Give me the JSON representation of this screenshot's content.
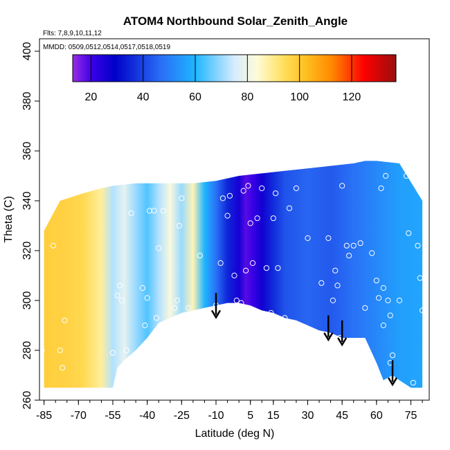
{
  "chart_data": {
    "type": "heatmap",
    "title": "ATOM4 Northbound Solar_Zenith_Angle",
    "annotations": {
      "flights": "Flts: 7,8,9,10,11,12",
      "dates": "MMDD: 0509,0512,0514,0517,0518,0519"
    },
    "xlabel": "Latitude (deg N)",
    "ylabel": "Theta (C)",
    "xlim": [
      -87,
      83
    ],
    "ylim": [
      260,
      405
    ],
    "x_ticks": [
      -85,
      -70,
      -55,
      -40,
      -25,
      -10,
      5,
      15,
      30,
      45,
      60,
      75
    ],
    "x_tick_labels": [
      "-85",
      "-70",
      "-55",
      "-40",
      "-25",
      "-10",
      "5",
      "15",
      "30",
      "45",
      "60",
      "75"
    ],
    "y_ticks": [
      260,
      280,
      300,
      320,
      340,
      360,
      380,
      400
    ],
    "y_tick_labels": [
      "260",
      "280",
      "300",
      "320",
      "340",
      "360",
      "380",
      "400"
    ],
    "colorbar": {
      "min": 13,
      "max": 137,
      "ticks": [
        20,
        40,
        60,
        80,
        100,
        120
      ],
      "tick_labels": [
        "20",
        "40",
        "60",
        "80",
        "100",
        "120"
      ],
      "position": "top-inside"
    },
    "zenith_profile": {
      "latitude": [
        -85,
        -75,
        -68,
        -60,
        -55,
        -50,
        -45,
        -40,
        -35,
        -30,
        -25,
        -20,
        -15,
        -10,
        -5,
        0,
        3,
        6,
        10,
        15,
        20,
        30,
        40,
        50,
        60,
        70,
        80
      ],
      "value": [
        98,
        97,
        95,
        88,
        72,
        78,
        70,
        64,
        72,
        82,
        70,
        86,
        60,
        48,
        36,
        26,
        18,
        20,
        27,
        37,
        43,
        46,
        44,
        48,
        52,
        56,
        57
      ]
    },
    "top_boundary": {
      "latitude": [
        -85,
        -78,
        -68,
        -60,
        -55,
        -45,
        -30,
        -20,
        -10,
        0,
        10,
        20,
        30,
        40,
        50,
        55,
        60,
        70,
        80
      ],
      "theta": [
        328,
        340,
        343,
        345,
        346,
        347,
        347,
        347,
        348,
        350,
        351,
        352,
        353,
        354,
        355,
        356,
        356,
        355,
        340
      ]
    },
    "bottom_boundary": {
      "latitude": [
        -85,
        -70,
        -55,
        -53,
        -50,
        -45,
        -40,
        -35,
        -30,
        -25,
        -20,
        -15,
        -10,
        -5,
        0,
        5,
        10,
        15,
        20,
        25,
        30,
        35,
        40,
        45,
        50,
        55,
        60,
        63,
        67,
        70,
        75,
        80
      ],
      "theta": [
        265,
        265,
        265,
        273,
        276,
        280,
        285,
        291,
        293,
        295,
        296,
        297,
        298,
        299,
        299,
        298,
        296,
        295,
        293,
        292,
        290,
        288,
        287,
        285,
        285,
        285,
        275,
        268,
        270,
        268,
        265,
        265
      ]
    },
    "points": [
      [
        -86,
        329
      ],
      [
        -86,
        280
      ],
      [
        -81,
        322
      ],
      [
        -78,
        280
      ],
      [
        -77,
        273
      ],
      [
        -76,
        292
      ],
      [
        -55,
        279
      ],
      [
        -53,
        302
      ],
      [
        -52,
        306
      ],
      [
        -51,
        300
      ],
      [
        -49,
        280
      ],
      [
        -47,
        335
      ],
      [
        -42,
        305
      ],
      [
        -41,
        290
      ],
      [
        -40,
        301
      ],
      [
        -39,
        336
      ],
      [
        -37,
        336
      ],
      [
        -36,
        293
      ],
      [
        -35,
        321
      ],
      [
        -33,
        336
      ],
      [
        -28,
        297
      ],
      [
        -27,
        300
      ],
      [
        -26,
        330
      ],
      [
        -25,
        341
      ],
      [
        -22,
        297
      ],
      [
        -17,
        318
      ],
      [
        -10,
        298
      ],
      [
        -8,
        315
      ],
      [
        -7,
        341
      ],
      [
        -5,
        334
      ],
      [
        -4,
        342
      ],
      [
        -2,
        310
      ],
      [
        -1,
        300
      ],
      [
        1,
        299
      ],
      [
        2,
        344
      ],
      [
        3,
        312
      ],
      [
        4,
        346
      ],
      [
        5,
        331
      ],
      [
        6,
        315
      ],
      [
        8,
        333
      ],
      [
        10,
        345
      ],
      [
        12,
        313
      ],
      [
        14,
        295
      ],
      [
        15,
        333
      ],
      [
        16,
        343
      ],
      [
        17,
        313
      ],
      [
        20,
        293
      ],
      [
        22,
        337
      ],
      [
        25,
        345
      ],
      [
        30,
        325
      ],
      [
        36,
        307
      ],
      [
        39,
        325
      ],
      [
        41,
        300
      ],
      [
        42,
        312
      ],
      [
        43,
        306
      ],
      [
        44,
        285
      ],
      [
        45,
        346
      ],
      [
        47,
        322
      ],
      [
        48,
        318
      ],
      [
        50,
        322
      ],
      [
        53,
        323
      ],
      [
        53,
        283
      ],
      [
        55,
        297
      ],
      [
        58,
        319
      ],
      [
        60,
        308
      ],
      [
        61,
        301
      ],
      [
        62,
        345
      ],
      [
        63,
        305
      ],
      [
        63,
        290
      ],
      [
        64,
        350
      ],
      [
        65,
        300
      ],
      [
        66,
        294
      ],
      [
        67,
        278
      ],
      [
        70,
        300
      ],
      [
        73,
        350
      ],
      [
        74,
        327
      ],
      [
        76,
        267
      ],
      [
        78,
        322
      ],
      [
        79,
        309
      ],
      [
        80,
        296
      ],
      [
        82,
        303
      ],
      [
        66,
        275
      ]
    ],
    "arrows": [
      {
        "latitude": -10,
        "theta_start": 303,
        "theta_end": 296
      },
      {
        "latitude": 39,
        "theta_start": 294,
        "theta_end": 287
      },
      {
        "latitude": 45,
        "theta_start": 292,
        "theta_end": 285
      },
      {
        "latitude": 67,
        "theta_start": 276,
        "theta_end": 269
      }
    ]
  }
}
